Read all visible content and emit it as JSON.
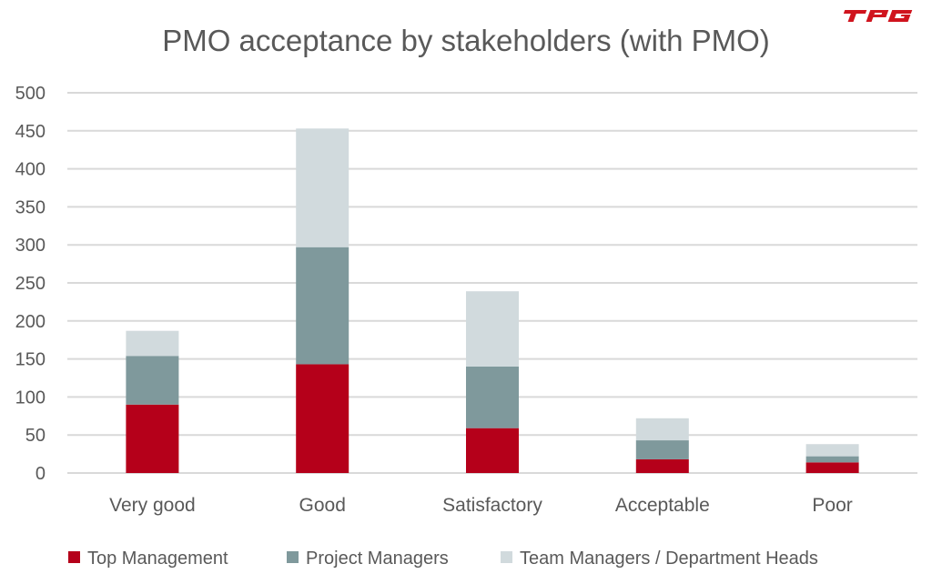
{
  "logo_text": "TPG",
  "chart_data": {
    "type": "bar",
    "stacked": true,
    "title": "PMO acceptance by stakeholders (with PMO)",
    "xlabel": "",
    "ylabel": "",
    "ylim": [
      0,
      500
    ],
    "yticks": [
      0,
      50,
      100,
      150,
      200,
      250,
      300,
      350,
      400,
      450,
      500
    ],
    "grid": true,
    "legend_position": "bottom",
    "categories": [
      "Very good",
      "Good",
      "Satisfactory",
      "Acceptable",
      "Poor"
    ],
    "series": [
      {
        "name": "Top Management",
        "color": "#B5001A",
        "values": [
          90,
          143,
          59,
          18,
          14
        ]
      },
      {
        "name": "Project Managers",
        "color": "#7F999C",
        "values": [
          64,
          154,
          81,
          25,
          8
        ]
      },
      {
        "name": "Team Managers / Department Heads",
        "color": "#D1DADD",
        "values": [
          33,
          156,
          99,
          29,
          16
        ]
      }
    ]
  }
}
